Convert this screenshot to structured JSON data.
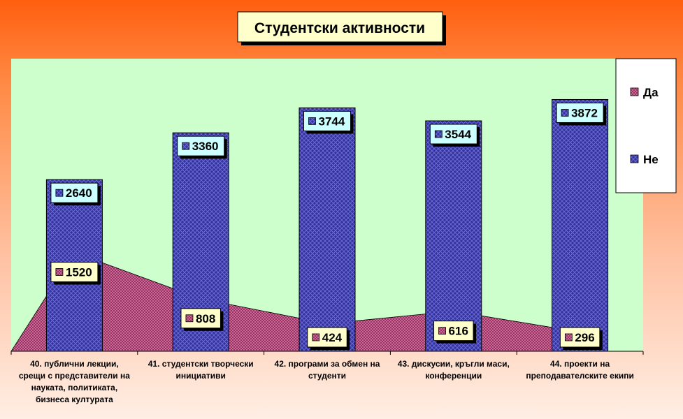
{
  "chart_data": {
    "type": "bar",
    "title": "Студентски активности",
    "categories": [
      [
        "40. публични лекции,",
        "срещи с представители на",
        "науката, политиката,",
        "бизнеса културата"
      ],
      [
        "41. студентски творчески",
        "инициативи"
      ],
      [
        "42. програми за обмен на",
        "студенти"
      ],
      [
        "43. дискусии, кръгли маси,",
        "конференции"
      ],
      [
        "44. проекти на",
        "преподавателските екипи"
      ]
    ],
    "series": [
      {
        "name": "Да",
        "kind": "area",
        "color": "#993366",
        "values": [
          1520,
          808,
          424,
          616,
          296
        ]
      },
      {
        "name": "Не",
        "kind": "bar",
        "color": "#333399",
        "values": [
          2640,
          3360,
          3744,
          3544,
          3872
        ]
      }
    ],
    "ylim": [
      0,
      4500
    ],
    "legend_position": "right",
    "grid": false,
    "colors": {
      "background_top": "#ff6a1a",
      "background_bottom": "#ffe8dc",
      "plot_area": "#ccffcc",
      "title_box": "#ffffcc",
      "label_da_box": "#ffffcc",
      "label_ne_box": "#ccffff"
    }
  }
}
